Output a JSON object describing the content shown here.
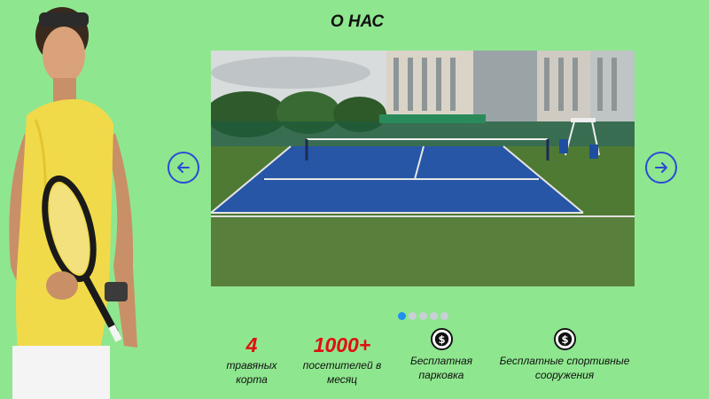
{
  "header": {
    "title": "О НАС"
  },
  "slider": {
    "active_index": 0,
    "total": 5
  },
  "features": [
    {
      "value": "4",
      "label_line1": "травяных",
      "label_line2": "корта"
    },
    {
      "value": "1000+",
      "label_line1": "посетителей в",
      "label_line2": "месяц"
    },
    {
      "icon": "dollar-sign-icon",
      "label_line1": "Бесплатная",
      "label_line2": "парковка"
    },
    {
      "icon": "dollar-sign-icon",
      "label_line1": "Бесплатные спортивные",
      "label_line2": "сооружения"
    }
  ],
  "colors": {
    "background": "#8ee68e",
    "accent_red": "#e01010",
    "arrow_blue": "#2a4bd6",
    "dot_active": "#1f8ff0"
  }
}
